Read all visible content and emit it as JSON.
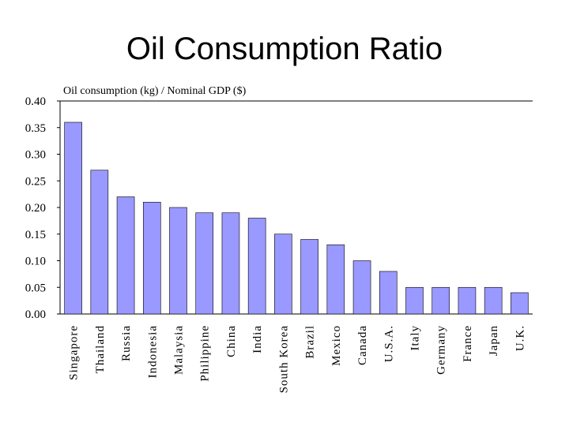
{
  "slide": {
    "title": "Oil Consumption Ratio"
  },
  "colors": {
    "bar_fill": "#9999ff",
    "bar_stroke": "#000000"
  },
  "chart_data": {
    "type": "bar",
    "title": "",
    "ylabel": "Oil consumption (kg) / Nominal GDP ($)",
    "xlabel": "",
    "ylim": [
      0,
      0.4
    ],
    "yticks": [
      "0.00",
      "0.05",
      "0.10",
      "0.15",
      "0.20",
      "0.25",
      "0.30",
      "0.35",
      "0.40"
    ],
    "grid": false,
    "categories": [
      "Singapore",
      "Thailand",
      "Russia",
      "Indonesia",
      "Malaysia",
      "Philippine",
      "China",
      "India",
      "South Korea",
      "Brazil",
      "Mexico",
      "Canada",
      "U.S.A.",
      "Italy",
      "Germany",
      "France",
      "Japan",
      "U.K."
    ],
    "values": [
      0.36,
      0.27,
      0.22,
      0.21,
      0.2,
      0.19,
      0.19,
      0.18,
      0.15,
      0.14,
      0.13,
      0.1,
      0.08,
      0.05,
      0.05,
      0.05,
      0.05,
      0.04
    ]
  }
}
